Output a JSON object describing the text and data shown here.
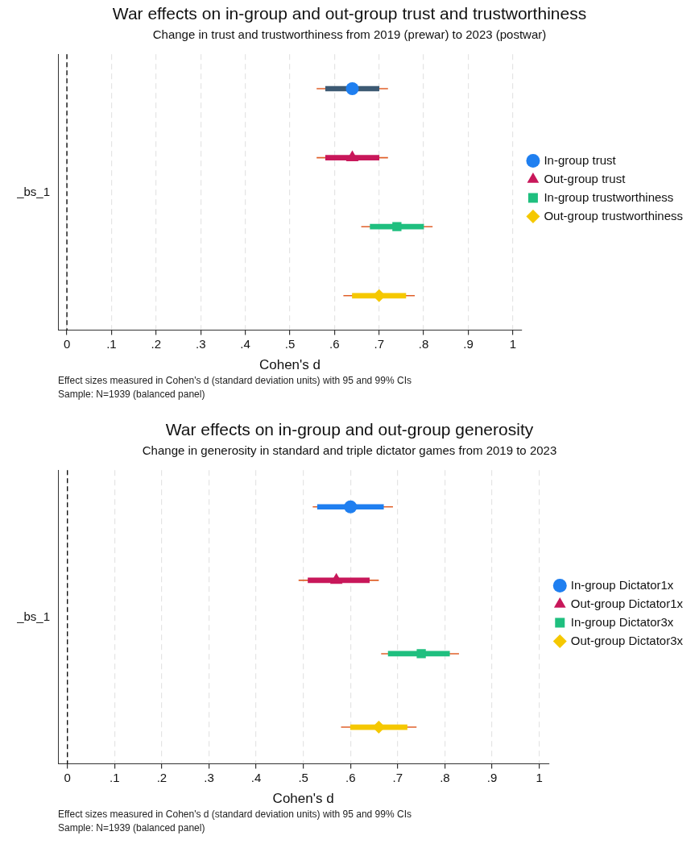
{
  "chart_data": [
    {
      "type": "scatter",
      "orientation": "horizontal",
      "title": "War effects on in-group and out-group trust and trustworthiness",
      "subtitle": "Change in trust and trustworthiness from 2019 (prewar) to 2023 (postwar)",
      "xlabel": "Cohen's d",
      "ylabel": "_bs_1",
      "categories": [
        null,
        null,
        null,
        null
      ],
      "xlim": [
        -0.02,
        1.02
      ],
      "xticks": [
        {
          "value": 0,
          "label": "0"
        },
        {
          "value": 0.1,
          "label": ".1"
        },
        {
          "value": 0.2,
          "label": ".2"
        },
        {
          "value": 0.3,
          "label": ".3"
        },
        {
          "value": 0.4,
          "label": ".4"
        },
        {
          "value": 0.5,
          "label": ".5"
        },
        {
          "value": 0.6,
          "label": ".6"
        },
        {
          "value": 0.7,
          "label": ".7"
        },
        {
          "value": 0.8,
          "label": ".8"
        },
        {
          "value": 0.9,
          "label": ".9"
        },
        {
          "value": 1,
          "label": "1"
        }
      ],
      "grid": "x",
      "legend": "right",
      "ref_lines": [
        {
          "axis": "x",
          "value": 0,
          "color": "#000000",
          "line_style": "dashed"
        }
      ],
      "series": [
        {
          "type": "bar",
          "colors": [
            "#3d5a73",
            "#c8175a",
            "#1fbf7f",
            "#f5c800"
          ],
          "base": [
            0.58,
            0.58,
            0.68,
            0.64
          ],
          "values": [
            0.12,
            0.12,
            0.12,
            0.12
          ]
        },
        {
          "name": "In-group trust",
          "color": "#1f7ff0",
          "marker": "circle",
          "values": [
            0.64,
            null,
            null,
            null
          ],
          "errors": [
            [
              0.56,
              0.72
            ],
            null,
            null,
            null
          ]
        },
        {
          "name": "Out-group trust",
          "color": "#c8175a",
          "marker": "triangle",
          "values": [
            null,
            0.64,
            null,
            null
          ],
          "errors": [
            null,
            [
              0.56,
              0.72
            ],
            null,
            null
          ]
        },
        {
          "name": "In-group trustworthiness",
          "color": "#1fbf7f",
          "marker": "square",
          "values": [
            null,
            null,
            0.74,
            null
          ],
          "errors": [
            null,
            null,
            [
              0.66,
              0.82
            ],
            null
          ]
        },
        {
          "name": "Out-group trustworthiness",
          "color": "#f5c800",
          "marker": "diamond",
          "values": [
            null,
            null,
            null,
            0.7
          ],
          "errors": [
            null,
            null,
            null,
            [
              0.62,
              0.78
            ]
          ]
        }
      ],
      "annotations": [
        "Effect sizes measured in Cohen's d (standard deviation units) with 95 and 99% CIs",
        "Sample: N=1939 (balanced panel)"
      ]
    },
    {
      "type": "scatter",
      "orientation": "horizontal",
      "title": "War effects on in-group and out-group generosity",
      "subtitle": "Change in generosity in standard and triple dictator games from 2019 to 2023",
      "xlabel": "Cohen's d",
      "ylabel": "_bs_1",
      "categories": [
        null,
        null,
        null,
        null
      ],
      "xlim": [
        -0.02,
        1.02
      ],
      "xticks": [
        {
          "value": 0,
          "label": "0"
        },
        {
          "value": 0.1,
          "label": ".1"
        },
        {
          "value": 0.2,
          "label": ".2"
        },
        {
          "value": 0.3,
          "label": ".3"
        },
        {
          "value": 0.4,
          "label": ".4"
        },
        {
          "value": 0.5,
          "label": ".5"
        },
        {
          "value": 0.6,
          "label": ".6"
        },
        {
          "value": 0.7,
          "label": ".7"
        },
        {
          "value": 0.8,
          "label": ".8"
        },
        {
          "value": 0.9,
          "label": ".9"
        },
        {
          "value": 1,
          "label": "1"
        }
      ],
      "grid": "x",
      "legend": "right",
      "ref_lines": [
        {
          "axis": "x",
          "value": 0,
          "color": "#000000",
          "line_style": "dashed"
        }
      ],
      "series": [
        {
          "type": "bar",
          "colors": [
            "#1f7ff0",
            "#c8175a",
            "#1fbf7f",
            "#f5c800"
          ],
          "base": [
            0.53,
            0.51,
            0.68,
            0.6
          ],
          "values": [
            0.14,
            0.13,
            0.13,
            0.12
          ]
        },
        {
          "name": "In-group Dictator1x",
          "color": "#1f7ff0",
          "marker": "circle",
          "values": [
            0.6,
            null,
            null,
            null
          ],
          "errors": [
            [
              0.52,
              0.69
            ],
            null,
            null,
            null
          ]
        },
        {
          "name": "Out-group Dictator1x",
          "color": "#c8175a",
          "marker": "triangle",
          "values": [
            null,
            0.57,
            null,
            null
          ],
          "errors": [
            null,
            [
              0.49,
              0.66
            ],
            null,
            null
          ]
        },
        {
          "name": "In-group Dictator3x",
          "color": "#1fbf7f",
          "marker": "square",
          "values": [
            null,
            null,
            0.75,
            null
          ],
          "errors": [
            null,
            null,
            [
              0.665,
              0.83
            ],
            null
          ]
        },
        {
          "name": "Out-group Dictator3x",
          "color": "#f5c800",
          "marker": "diamond",
          "values": [
            null,
            null,
            null,
            0.66
          ],
          "errors": [
            null,
            null,
            null,
            [
              0.58,
              0.74
            ]
          ]
        }
      ],
      "annotations": [
        "Effect sizes measured in Cohen's d (standard deviation units) with 95 and 99% CIs",
        "Sample: N=1939 (balanced panel)"
      ]
    }
  ]
}
